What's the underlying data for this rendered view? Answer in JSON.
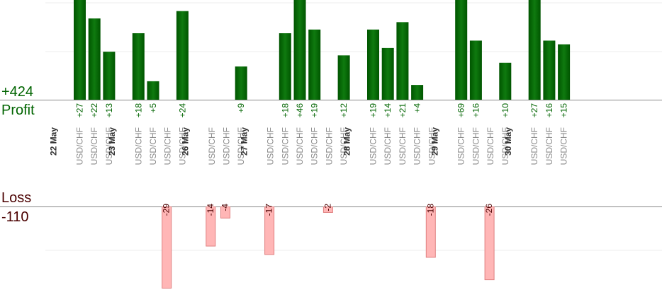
{
  "profit_section": {
    "label": "Profit",
    "total": "+424"
  },
  "loss_section": {
    "label": "Loss",
    "total": "-110"
  },
  "colors": {
    "profit_bar_dark": "#005500",
    "profit_bar_light": "#0f7a0f",
    "profit_text": "#006400",
    "loss_bar_fill": "#ffb6b6",
    "loss_bar_stroke": "#e08080",
    "loss_text": "#4a0000",
    "axis_line": "#888888",
    "grid_line": "#eeeeee",
    "date_text": "#333333",
    "pair_text": "#8a8a8a"
  },
  "chart_data": {
    "type": "bar",
    "description_scope": "Per-trade profit/loss bars grouped by trading day; profit bars above the axis, loss bars below",
    "days": [
      {
        "date": "22 May",
        "trades": [
          {
            "pair": "USD/CHF",
            "value": 27
          },
          {
            "pair": "USD/CHF",
            "value": 22
          },
          {
            "pair": "USD/CHF",
            "value": 13
          }
        ]
      },
      {
        "date": "23 May",
        "trades": [
          {
            "pair": "USD/CHF",
            "value": 18
          },
          {
            "pair": "USD/CHF",
            "value": 5
          },
          {
            "pair": "USD/CHF",
            "value": -29
          },
          {
            "pair": "USD/CHF",
            "value": 24
          }
        ]
      },
      {
        "date": "26 May",
        "trades": [
          {
            "pair": "USD/CHF",
            "value": -14
          },
          {
            "pair": "USD/CHF",
            "value": -4
          },
          {
            "pair": "USD/CHF",
            "value": 9
          }
        ]
      },
      {
        "date": "27 May",
        "trades": [
          {
            "pair": "USD/CHF",
            "value": -17
          },
          {
            "pair": "USD/CHF",
            "value": 18
          },
          {
            "pair": "USD/CHF",
            "value": 46
          },
          {
            "pair": "USD/CHF",
            "value": 19
          },
          {
            "pair": "USD/CHF",
            "value": -2
          },
          {
            "pair": "USD/CHF",
            "value": 12
          }
        ]
      },
      {
        "date": "28 May",
        "trades": [
          {
            "pair": "USD/CHF",
            "value": 19
          },
          {
            "pair": "USD/CHF",
            "value": 14
          },
          {
            "pair": "USD/CHF",
            "value": 21
          },
          {
            "pair": "USD/CHF",
            "value": 4
          },
          {
            "pair": "USD/CHF",
            "value": -18
          }
        ]
      },
      {
        "date": "29 May",
        "trades": [
          {
            "pair": "USD/CHF",
            "value": 69
          },
          {
            "pair": "USD/CHF",
            "value": 16
          },
          {
            "pair": "USD/CHF",
            "value": -26
          },
          {
            "pair": "USD/CHF",
            "value": 10
          }
        ]
      },
      {
        "date": "30 May",
        "trades": [
          {
            "pair": "USD/CHF",
            "value": 27
          },
          {
            "pair": "USD/CHF",
            "value": 16
          },
          {
            "pair": "USD/CHF",
            "value": 15
          }
        ]
      }
    ],
    "total_profit": 424,
    "total_loss": -110,
    "y_display_cap_profit": 27,
    "y_display_cap_loss": 29,
    "grid": true,
    "legend": "none"
  }
}
